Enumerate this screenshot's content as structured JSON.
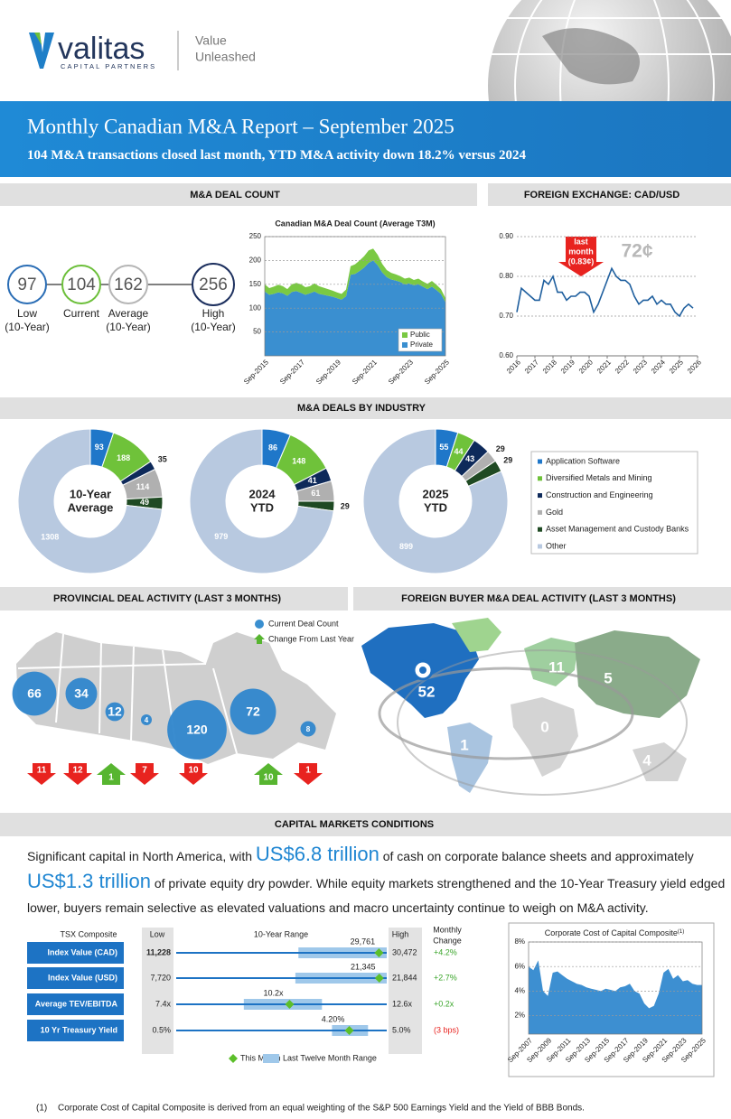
{
  "header": {
    "logo": "valitas",
    "logo_sub": "CAPITAL PARTNERS",
    "tagline": [
      "Value",
      "Unleashed"
    ],
    "title": "Monthly Canadian M&A Report – September 2025",
    "subtitle": [
      "104 M&A transactions closed last month, YTD M&A activity down ",
      "18.2%",
      " versus 2024"
    ]
  },
  "deal_count": {
    "heading": "M&A DEAL COUNT",
    "stats": [
      {
        "value": 97,
        "label": [
          "Low",
          "(10-Year)"
        ],
        "color": "#2a6db5"
      },
      {
        "value": 104,
        "label": [
          "Current"
        ],
        "color": "#6cbf3a"
      },
      {
        "value": 162,
        "label": [
          "Average",
          "(10-Year)"
        ],
        "color": "#b5b5b5"
      },
      {
        "value": 256,
        "label": [
          "High",
          "(10-Year)"
        ],
        "color": "#1c2f5e"
      }
    ],
    "chart": {
      "type": "area",
      "title": "Canadian M&A Deal Count (Average T3M)",
      "categories": [
        "Sep-2015",
        null,
        null,
        null,
        null,
        null,
        null,
        null,
        "Sep-2017",
        null,
        null,
        null,
        null,
        null,
        null,
        null,
        "Sep-2019",
        null,
        null,
        null,
        null,
        null,
        null,
        null,
        "Sep-2021",
        null,
        null,
        null,
        null,
        null,
        null,
        null,
        "Sep-2023",
        null,
        null,
        null,
        null,
        null,
        null,
        null,
        "Sep-2025"
      ],
      "ylim": [
        0,
        250
      ],
      "yticks": [
        50,
        100,
        150,
        200,
        250
      ],
      "grid": true,
      "legend": "lower right",
      "series": [
        {
          "name": "Private",
          "color": "#3a8fd0",
          "values": [
            135,
            128,
            130,
            133,
            131,
            126,
            134,
            136,
            132,
            128,
            131,
            135,
            130,
            128,
            126,
            124,
            121,
            118,
            125,
            170,
            172,
            178,
            185,
            195,
            200,
            190,
            175,
            165,
            160,
            158,
            155,
            150,
            152,
            148,
            150,
            145,
            140,
            145,
            138,
            130,
            112
          ]
        },
        {
          "name": "Public",
          "color": "#7ac943",
          "values": [
            15,
            14,
            15,
            16,
            15,
            14,
            16,
            17,
            18,
            16,
            15,
            17,
            16,
            15,
            14,
            13,
            12,
            12,
            14,
            18,
            20,
            22,
            24,
            26,
            25,
            22,
            18,
            15,
            14,
            13,
            12,
            12,
            12,
            11,
            12,
            11,
            11,
            12,
            11,
            10,
            9
          ]
        }
      ]
    }
  },
  "fx": {
    "heading": "FOREIGN EXCHANGE: CAD/USD",
    "chart": {
      "type": "line",
      "color": "#1f5f9e",
      "x": [
        2016,
        2016.25,
        2016.5,
        2016.75,
        2017,
        2017.25,
        2017.5,
        2017.75,
        2018,
        2018.25,
        2018.5,
        2018.75,
        2019,
        2019.25,
        2019.5,
        2019.75,
        2020,
        2020.25,
        2020.5,
        2020.75,
        2021,
        2021.25,
        2021.5,
        2021.75,
        2022,
        2022.25,
        2022.5,
        2022.75,
        2023,
        2023.25,
        2023.5,
        2023.75,
        2024,
        2024.25,
        2024.5,
        2024.75,
        2025,
        2025.25,
        2025.5,
        2025.75
      ],
      "values": [
        0.71,
        0.77,
        0.76,
        0.75,
        0.74,
        0.74,
        0.79,
        0.78,
        0.8,
        0.76,
        0.76,
        0.74,
        0.75,
        0.75,
        0.76,
        0.76,
        0.75,
        0.71,
        0.73,
        0.76,
        0.79,
        0.82,
        0.8,
        0.79,
        0.79,
        0.78,
        0.75,
        0.73,
        0.74,
        0.74,
        0.75,
        0.73,
        0.74,
        0.73,
        0.73,
        0.71,
        0.7,
        0.72,
        0.73,
        0.72
      ],
      "xlim": [
        2016,
        2026
      ],
      "xticks": [
        2016,
        2017,
        2018,
        2019,
        2020,
        2021,
        2022,
        2023,
        2024,
        2025,
        2026
      ],
      "ylim": [
        0.6,
        0.9
      ],
      "yticks": [
        {
          "value": 0.6,
          "label": "0.60"
        },
        {
          "value": 0.7,
          "label": "0.70"
        },
        {
          "value": 0.8,
          "label": "0.80"
        },
        {
          "value": 0.9,
          "label": "0.90"
        }
      ],
      "grid": true,
      "callout": [
        "last",
        "month",
        "(0.83¢)"
      ],
      "annotation": "72¢"
    }
  },
  "industry": {
    "heading": "M&A DEALS BY INDUSTRY",
    "categories": [
      "Application Software",
      "Diversified Metals and Mining",
      "Construction and Engineering",
      "Gold",
      "Asset Management and Custody Banks",
      "Other"
    ],
    "colors": [
      "#1f77c9",
      "#6fc23a",
      "#0e2a5a",
      "#b0b0b0",
      "#1f4a23",
      "#b8c9e0"
    ],
    "charts": [
      {
        "type": "donut",
        "label": [
          "10-Year",
          "Average"
        ],
        "values": [
          93,
          188,
          35,
          114,
          49,
          1308
        ]
      },
      {
        "type": "donut",
        "label": [
          "2024",
          "YTD"
        ],
        "values": [
          86,
          148,
          41,
          61,
          29,
          979
        ]
      },
      {
        "type": "donut",
        "label": [
          "2025",
          "YTD"
        ],
        "values": [
          55,
          44,
          43,
          29,
          29,
          899
        ]
      }
    ]
  },
  "provincial": {
    "heading": "PROVINCIAL DEAL ACTIVITY (LAST 3 MONTHS)",
    "legend": [
      "Current Deal Count",
      "Change From Last Year"
    ],
    "counts": [
      66,
      34,
      12,
      4,
      120,
      72,
      8
    ],
    "changes": {
      "values": [
        -11,
        -12,
        1,
        -7,
        -10,
        10,
        -1
      ],
      "value_labels": [
        "11",
        "12",
        "1",
        "7",
        "10",
        "10",
        "1"
      ]
    }
  },
  "foreign": {
    "heading": "FOREIGN BUYER M&A DEAL ACTIVITY (LAST 3 MONTHS)",
    "counts": [
      52,
      11,
      5,
      1,
      0,
      4
    ]
  },
  "capital": {
    "heading": "CAPITAL MARKETS CONDITIONS",
    "paragraph": [
      "Significant capital in North America, with ",
      "US$6.8 trillion",
      " of cash on corporate balance sheets and approximately ",
      "US$1.3 trillion",
      " of private equity dry powder. While equity markets strengthened and the 10-Year Treasury yield edged lower, buyers remain selective as elevated valuations and macro uncertainty continue to weigh on M&A activity."
    ],
    "table": {
      "headers": {
        "name": "TSX Composite",
        "low": "Low",
        "range": "10-Year Range",
        "high": "High",
        "change": [
          "Monthly",
          "Change"
        ]
      },
      "rows": [
        {
          "name": "Index Value (CAD)",
          "values": {
            "low": 11228,
            "current": 29761,
            "high": 30472,
            "ltm": [
              22400,
              30472
            ],
            "change": 4.2
          },
          "value_labels": {
            "low": "11,228",
            "current": "29,761",
            "high": "30,472",
            "change": "+4.2%"
          }
        },
        {
          "name": "Index Value (USD)",
          "values": {
            "low": 7720,
            "current": 21345,
            "high": 21844,
            "ltm": [
              15715,
              21844
            ],
            "change": 2.7
          },
          "value_labels": {
            "low": "7,720",
            "current": "21,345",
            "high": "21,844",
            "change": "+2.7%"
          }
        },
        {
          "name": "Average TEV/EBITDA",
          "values": {
            "low": 7.4,
            "current": 10.2,
            "high": 12.6,
            "ltm": [
              9.07,
              11.0
            ],
            "change": 0.2
          },
          "value_labels": {
            "low": "7.4x",
            "current": "10.2x",
            "high": "12.6x",
            "change": "+0.2x"
          }
        },
        {
          "name": "10 Yr Treasury Yield",
          "values": {
            "low": 0.5,
            "current": 4.2,
            "high": 5.0,
            "ltm": [
              3.83,
              4.6
            ],
            "change": -0.03
          },
          "value_labels": {
            "low": "0.5%",
            "current": "4.20%",
            "high": "5.0%",
            "change": "(3 bps)"
          }
        }
      ],
      "legend": [
        "This Month",
        "Last Twelve Month Range"
      ]
    },
    "chart": {
      "type": "area",
      "title": "Corporate Cost of Capital Composite",
      "title_note": "(1)",
      "color": "#3d8fd1",
      "categories": [
        "Sep-2007",
        null,
        null,
        null,
        "Sep-2009",
        null,
        null,
        null,
        "Sep-2011",
        null,
        null,
        null,
        "Sep-2013",
        null,
        null,
        null,
        "Sep-2015",
        null,
        null,
        null,
        "Sep-2017",
        null,
        null,
        null,
        "Sep-2019",
        null,
        null,
        null,
        "Sep-2021",
        null,
        null,
        null,
        "Sep-2023",
        null,
        null,
        null,
        "Sep-2025"
      ],
      "values": [
        6.0,
        5.7,
        6.5,
        4.0,
        3.6,
        5.5,
        5.6,
        5.3,
        5.0,
        4.8,
        4.6,
        4.5,
        4.3,
        4.2,
        4.1,
        4.0,
        4.2,
        4.1,
        4.0,
        4.3,
        4.4,
        4.6,
        4.0,
        3.8,
        3.0,
        2.6,
        2.8,
        3.8,
        5.5,
        5.8,
        5.0,
        5.3,
        4.8,
        4.9,
        4.6,
        4.5,
        4.5
      ],
      "ylim": [
        0.5,
        8
      ],
      "yticks": [
        {
          "value": 2,
          "label": "2%"
        },
        {
          "value": 4,
          "label": "4%"
        },
        {
          "value": 6,
          "label": "6%"
        },
        {
          "value": 8,
          "label": "8%"
        }
      ],
      "grid": true
    }
  },
  "footnote": {
    "marker": "(1)",
    "text": "Corporate Cost of Capital Composite is derived from an equal weighting of the S&P 500 Earnings Yield and the Yield of BBB Bonds."
  }
}
